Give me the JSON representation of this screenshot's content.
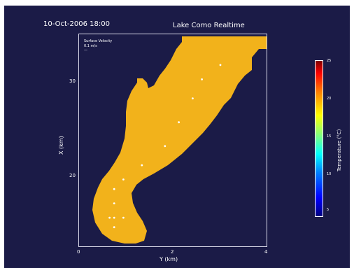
{
  "header": {
    "datetime": "10-Oct-2006  18:00",
    "title": "Lake Como Realtime"
  },
  "legend": {
    "line1": "Surface Velocity",
    "line2": "0.1 m/s"
  },
  "colorbar": {
    "label": "Temperature (°C)",
    "ticks": [
      "25",
      "20",
      "15",
      "10",
      "5"
    ]
  },
  "colors": {
    "background": "#1b1b47",
    "lake_fill": "#f2b21b",
    "vector": "#ffffff"
  },
  "chart_data": {
    "type": "heatmap",
    "title": "Lake Como Realtime",
    "subtitle": "10-Oct-2006  18:00",
    "xlabel": "Y (km)",
    "ylabel": "X (km)",
    "x_ticks": [
      "0",
      "2",
      "4"
    ],
    "y_ticks": [
      "20",
      "30"
    ],
    "xlim": [
      0,
      4
    ],
    "ylim": [
      14,
      36
    ],
    "colorbar": {
      "label": "Temperature (°C)",
      "range": [
        5,
        25
      ],
      "ticks": [
        25,
        20,
        15,
        10,
        5
      ],
      "colormap": "jet"
    },
    "field": {
      "variable": "Temperature",
      "approx_value": 17.5,
      "unit": "°C"
    },
    "vector_legend": {
      "label": "Surface Velocity",
      "scale": "0.1 m/s"
    },
    "vectors": [
      {
        "x": 3.0,
        "y": 33.0
      },
      {
        "x": 2.6,
        "y": 31.5
      },
      {
        "x": 2.4,
        "y": 29.5
      },
      {
        "x": 2.1,
        "y": 27.0
      },
      {
        "x": 1.8,
        "y": 24.5
      },
      {
        "x": 1.3,
        "y": 22.5
      },
      {
        "x": 0.9,
        "y": 21.0
      },
      {
        "x": 0.7,
        "y": 20.0
      },
      {
        "x": 0.7,
        "y": 18.5
      },
      {
        "x": 0.6,
        "y": 17.0
      },
      {
        "x": 0.7,
        "y": 17.0
      },
      {
        "x": 0.9,
        "y": 17.0
      },
      {
        "x": 0.7,
        "y": 16.0
      }
    ]
  }
}
